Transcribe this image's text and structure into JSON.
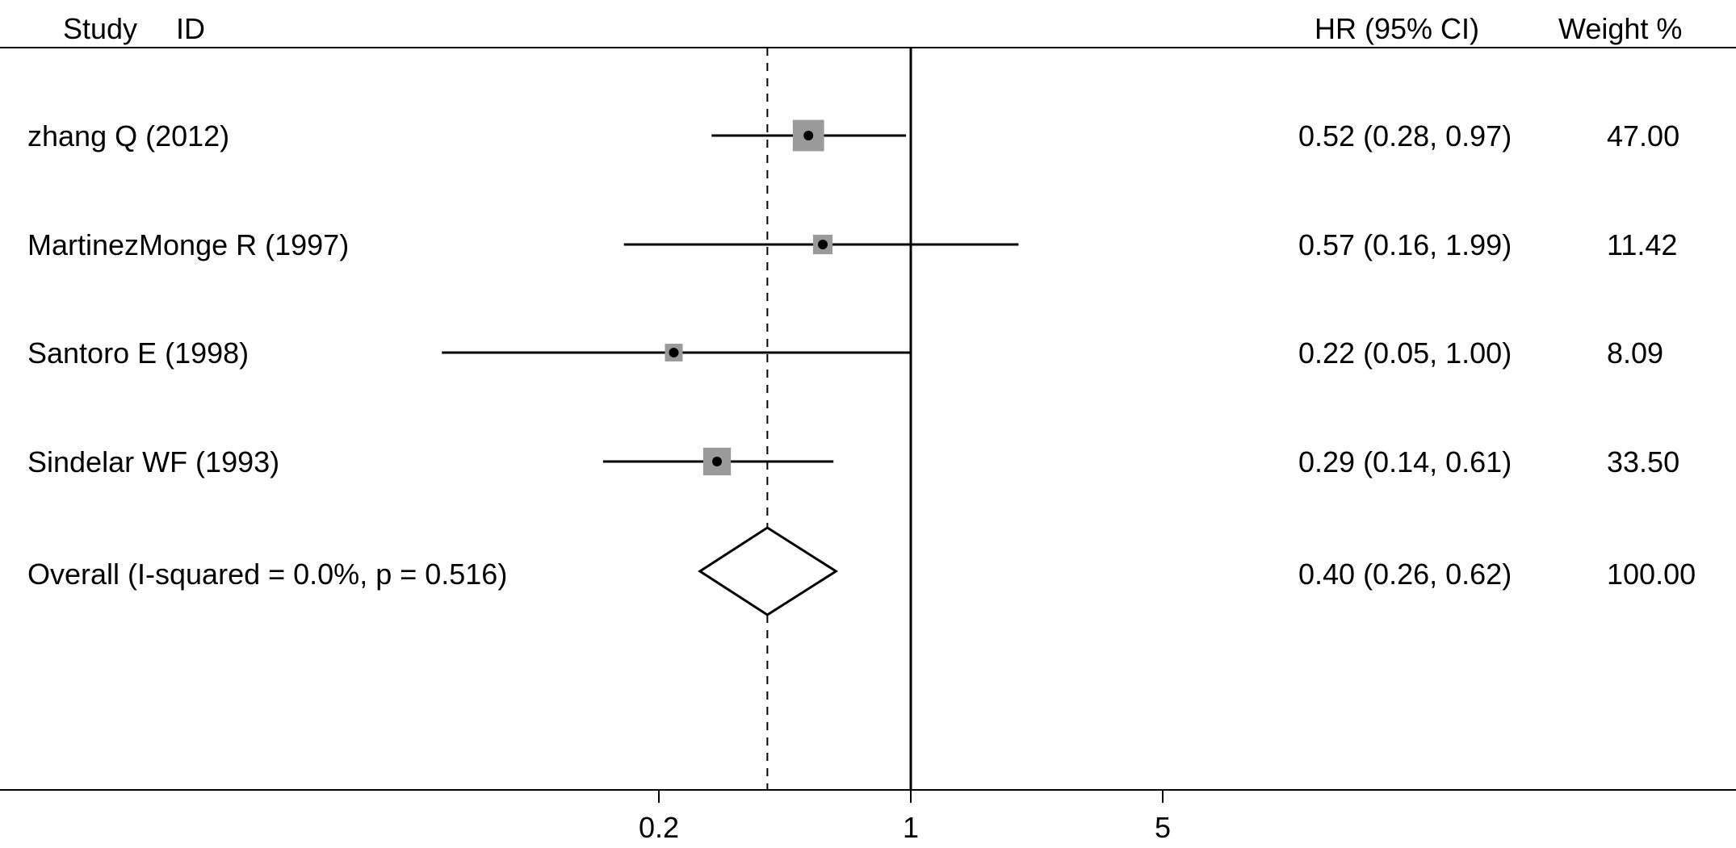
{
  "chart_data": {
    "type": "forest",
    "columns": {
      "study": "Study",
      "id": "ID",
      "hr": "HR (95% CI)",
      "weight": "Weight %"
    },
    "xscale": "log",
    "xticks": [
      {
        "value": 0.2,
        "label": "0.2"
      },
      {
        "value": 1,
        "label": "1"
      },
      {
        "value": 5,
        "label": "5"
      }
    ],
    "null_line": 1,
    "studies": [
      {
        "label": "zhang Q (2012)",
        "hr": 0.52,
        "lower": 0.28,
        "upper": 0.97,
        "hr_text": "0.52 (0.28, 0.97)",
        "weight": 47.0,
        "weight_text": "47.00"
      },
      {
        "label": "MartinezMonge R (1997)",
        "hr": 0.57,
        "lower": 0.16,
        "upper": 1.99,
        "hr_text": "0.57 (0.16, 1.99)",
        "weight": 11.42,
        "weight_text": "11.42"
      },
      {
        "label": "Santoro E (1998)",
        "hr": 0.22,
        "lower": 0.05,
        "upper": 1.0,
        "hr_text": "0.22 (0.05, 1.00)",
        "weight": 8.09,
        "weight_text": "8.09"
      },
      {
        "label": "Sindelar WF (1993)",
        "hr": 0.29,
        "lower": 0.14,
        "upper": 0.61,
        "hr_text": "0.29 (0.14, 0.61)",
        "weight": 33.5,
        "weight_text": "33.50"
      }
    ],
    "overall": {
      "label": "Overall  (I-squared = 0.0%, p = 0.516)",
      "hr": 0.4,
      "lower": 0.26,
      "upper": 0.62,
      "hr_text": "0.40 (0.26, 0.62)",
      "weight_text": "100.00"
    }
  }
}
